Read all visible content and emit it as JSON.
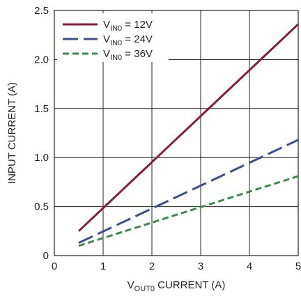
{
  "chart_data": {
    "type": "line",
    "title": "",
    "xlabel": {
      "main": "V",
      "sub": "OUT0",
      "rest": " CURRENT (A)"
    },
    "ylabel": "INPUT CURRENT (A)",
    "xlim": [
      0,
      5
    ],
    "ylim": [
      0,
      2.5
    ],
    "x_ticks": [
      "0",
      "1",
      "2",
      "3",
      "4",
      "5"
    ],
    "y_ticks": [
      "0",
      "0.5",
      "1.0",
      "1.5",
      "2.0",
      "2.5"
    ],
    "grid": true,
    "legend_position": "top-left",
    "series": [
      {
        "name": "VIN0 = 12V",
        "legend": {
          "main": "V",
          "sub": "IN0",
          "rest": " = 12V"
        },
        "color": "#8b1a36",
        "style": "solid",
        "x": [
          0.5,
          5.0
        ],
        "y": [
          0.25,
          2.36
        ]
      },
      {
        "name": "VIN0 = 24V",
        "legend": {
          "main": "V",
          "sub": "IN0",
          "rest": " = 24V"
        },
        "color": "#3a4f8c",
        "style": "long-dash",
        "x": [
          0.5,
          5.0
        ],
        "y": [
          0.13,
          1.18
        ]
      },
      {
        "name": "VIN0 = 36V",
        "legend": {
          "main": "V",
          "sub": "IN0",
          "rest": " = 36V"
        },
        "color": "#3d8a4a",
        "style": "short-dash",
        "x": [
          0.5,
          5.0
        ],
        "y": [
          0.1,
          0.81
        ]
      }
    ]
  }
}
